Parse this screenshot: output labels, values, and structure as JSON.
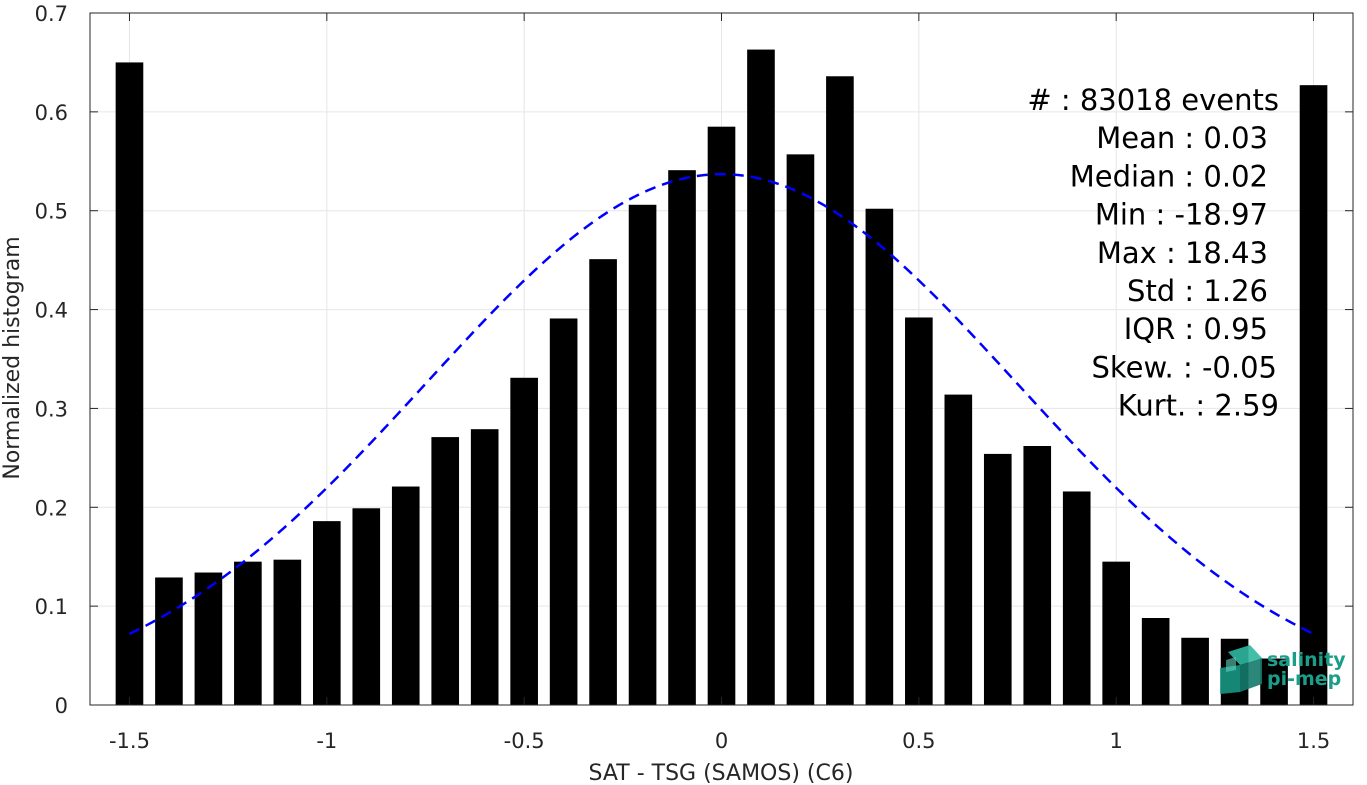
{
  "chart_data": {
    "type": "bar",
    "title": "",
    "xlabel": "SAT - TSG (SAMOS) (C6)",
    "ylabel": "Normalized histogram",
    "xlim": [
      -1.6,
      1.6
    ],
    "ylim": [
      0,
      0.7
    ],
    "xticks": [
      -1.5,
      -1,
      -0.5,
      0,
      0.5,
      1,
      1.5
    ],
    "xtick_labels": [
      "-1.5",
      "-1",
      "-0.5",
      "0",
      "0.5",
      "1",
      "1.5"
    ],
    "yticks": [
      0,
      0.1,
      0.2,
      0.3,
      0.4,
      0.5,
      0.6,
      0.7
    ],
    "ytick_labels": [
      "0",
      "0.1",
      "0.2",
      "0.3",
      "0.4",
      "0.5",
      "0.6",
      "0.7"
    ],
    "grid": true,
    "bar_color": "#000000",
    "bar_width": 0.07,
    "x": [
      -1.5,
      -1.4,
      -1.3,
      -1.2,
      -1.1,
      -1.0,
      -0.9,
      -0.8,
      -0.7,
      -0.6,
      -0.5,
      -0.4,
      -0.3,
      -0.2,
      -0.1,
      0.0,
      0.1,
      0.2,
      0.3,
      0.4,
      0.5,
      0.6,
      0.7,
      0.8,
      0.9,
      1.0,
      1.1,
      1.2,
      1.3,
      1.4,
      1.5
    ],
    "values": [
      0.65,
      0.129,
      0.134,
      0.145,
      0.147,
      0.186,
      0.199,
      0.221,
      0.271,
      0.279,
      0.331,
      0.391,
      0.451,
      0.506,
      0.541,
      0.585,
      0.663,
      0.557,
      0.636,
      0.502,
      0.392,
      0.314,
      0.254,
      0.262,
      0.216,
      0.145,
      0.088,
      0.068,
      0.067,
      0.047,
      0.627
    ],
    "fit": {
      "name": "",
      "color": "#0000ff",
      "style": "dashed",
      "mean": 0.0,
      "std": 0.748,
      "peak": 0.537,
      "x_range": [
        -1.5,
        1.5
      ]
    },
    "annotations": [
      {
        "label": "#",
        "sep": ":",
        "value": "83018 events",
        "kind": "count"
      },
      {
        "label": "Mean",
        "sep": ":",
        "value": "0.03"
      },
      {
        "label": "Median",
        "sep": ":",
        "value": "0.02"
      },
      {
        "label": "Min",
        "sep": ":",
        "value": "-18.97"
      },
      {
        "label": "Max",
        "sep": ":",
        "value": "18.43"
      },
      {
        "label": "Std",
        "sep": ":",
        "value": "1.26"
      },
      {
        "label": "IQR",
        "sep": ":",
        "value": "0.95"
      },
      {
        "label": "Skew.",
        "sep": ":",
        "value": "-0.05"
      },
      {
        "label": "Kurt.",
        "sep": ":",
        "value": "2.59"
      }
    ]
  },
  "logo": {
    "line1": "salinity",
    "line2": "pi-mep",
    "color": "#1a9e8a",
    "icon": "cube-icon"
  }
}
